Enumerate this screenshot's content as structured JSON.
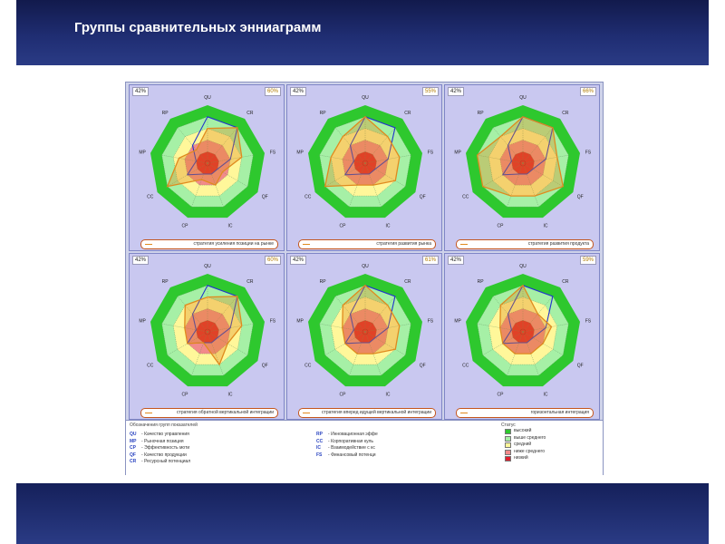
{
  "slide": {
    "title": "Группы сравнительных энниаграмм"
  },
  "colors": {
    "band": "#1f2d72",
    "zone_high": "#2ec82e",
    "zone_above": "#a6f0a6",
    "zone_mid": "#fff79a",
    "zone_below": "#f28a8a",
    "zone_low": "#e01d2d",
    "series_blue": "#2233cc",
    "series_orange": "#e08a1e"
  },
  "chart_data": [
    {
      "type": "radar",
      "axes": [
        "QU",
        "CR",
        "FS",
        "QF",
        "IC",
        "CP",
        "CC",
        "MP",
        "RP"
      ],
      "left_value": "42%",
      "right_value": "60%",
      "legend": "стратегия усиления позиции на рынке",
      "series": [
        {
          "color": "blue",
          "values": [
            4,
            4,
            2,
            1,
            1,
            1,
            2,
            1,
            2
          ]
        },
        {
          "color": "orange",
          "values": [
            3,
            4,
            3,
            1.5,
            2,
            1.5,
            4,
            2.5,
            1.5
          ]
        }
      ]
    },
    {
      "type": "radar",
      "axes": [
        "QU",
        "CR",
        "FS",
        "QF",
        "IC",
        "CP",
        "CC",
        "MP",
        "RP"
      ],
      "left_value": "42%",
      "right_value": "55%",
      "legend": "стратегия развития рынка",
      "series": [
        {
          "color": "blue",
          "values": [
            4,
            4,
            2,
            1,
            1,
            1,
            2,
            1,
            2
          ]
        },
        {
          "color": "orange",
          "values": [
            4,
            3,
            3,
            3,
            2,
            2,
            4,
            3,
            3
          ]
        }
      ]
    },
    {
      "type": "radar",
      "axes": [
        "QU",
        "CR",
        "FS",
        "QF",
        "IC",
        "CP",
        "CC",
        "MP",
        "RP"
      ],
      "left_value": "42%",
      "right_value": "66%",
      "legend": "стратегия развития продукта",
      "series": [
        {
          "color": "blue",
          "values": [
            4,
            4,
            2,
            1,
            1,
            1,
            2,
            1,
            2
          ]
        },
        {
          "color": "orange",
          "values": [
            4,
            4,
            3,
            4,
            3,
            3,
            4,
            4,
            3
          ]
        }
      ]
    },
    {
      "type": "radar",
      "axes": [
        "QU",
        "CR",
        "FS",
        "QF",
        "IC",
        "CP",
        "CC",
        "MP",
        "RP"
      ],
      "left_value": "42%",
      "right_value": "60%",
      "legend": "стратегия обратной вертикальной интеграции",
      "series": [
        {
          "color": "blue",
          "values": [
            4,
            4,
            2,
            1,
            1,
            1,
            2,
            1,
            2
          ]
        },
        {
          "color": "orange",
          "values": [
            3,
            4,
            3,
            2,
            3,
            1,
            2,
            2,
            3
          ]
        }
      ]
    },
    {
      "type": "radar",
      "axes": [
        "QU",
        "CR",
        "FS",
        "QF",
        "IC",
        "CP",
        "CC",
        "MP",
        "RP"
      ],
      "left_value": "42%",
      "right_value": "61%",
      "legend": "стратегия вперед идущей вертикальной интеграции",
      "series": [
        {
          "color": "blue",
          "values": [
            4,
            4,
            2,
            1,
            1,
            1,
            2,
            1,
            2
          ]
        },
        {
          "color": "orange",
          "values": [
            4,
            3,
            3,
            3,
            2,
            2,
            2,
            2,
            3
          ]
        }
      ]
    },
    {
      "type": "radar",
      "axes": [
        "QU",
        "CR",
        "FS",
        "QF",
        "IC",
        "CP",
        "CC",
        "MP",
        "RP"
      ],
      "left_value": "42%",
      "right_value": "59%",
      "legend": "горизонтальная интеграция",
      "series": [
        {
          "color": "blue",
          "values": [
            4,
            4,
            2,
            1,
            1,
            1,
            2,
            1,
            2
          ]
        },
        {
          "color": "orange",
          "values": [
            4,
            2,
            2.5,
            2,
            2,
            2,
            2,
            2,
            3
          ]
        }
      ]
    }
  ],
  "groups": {
    "title": "Обозначения групп показателей",
    "col1": [
      {
        "code": "QU",
        "name": "Качество управления"
      },
      {
        "code": "MP",
        "name": "Рыночная позиция"
      },
      {
        "code": "CP",
        "name": "Эффективность моти"
      },
      {
        "code": "QF",
        "name": "Качество продукции"
      },
      {
        "code": "CR",
        "name": "Ресурсный потенциал"
      }
    ],
    "col2": [
      {
        "code": "RP",
        "name": "Инновационная эффе"
      },
      {
        "code": "CC",
        "name": "Корпоративная куль"
      },
      {
        "code": "IC",
        "name": "Взаимодействие с кс"
      },
      {
        "code": "FS",
        "name": "Финансовый потенци"
      }
    ]
  },
  "status": {
    "title": "Статус",
    "items": [
      {
        "label": "высокий",
        "color": "#2ec82e"
      },
      {
        "label": "выше среднего",
        "color": "#a6f0a6"
      },
      {
        "label": "средний",
        "color": "#fff79a"
      },
      {
        "label": "ниже среднего",
        "color": "#f28a8a"
      },
      {
        "label": "низкий",
        "color": "#e01d2d"
      }
    ]
  }
}
